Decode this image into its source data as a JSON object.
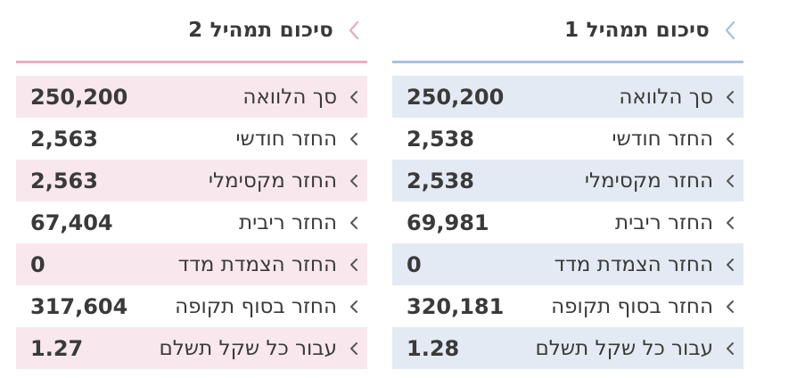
{
  "summaries": [
    {
      "title": "סיכום תמהיל 1",
      "rows": [
        {
          "label": "סך הלוואה",
          "value": "250,200"
        },
        {
          "label": "החזר חודשי",
          "value": "2,538"
        },
        {
          "label": "החזר מקסימלי",
          "value": "2,538"
        },
        {
          "label": "החזר ריבית",
          "value": "69,981"
        },
        {
          "label": "החזר הצמדת מדד",
          "value": "0"
        },
        {
          "label": "החזר בסוף תקופה",
          "value": "320,181"
        },
        {
          "label": "עבור כל שקל תשלם",
          "value": "1.28"
        }
      ]
    },
    {
      "title": "סיכום תמהיל 2",
      "rows": [
        {
          "label": "סך הלוואה",
          "value": "250,200"
        },
        {
          "label": "החזר חודשי",
          "value": "2,563"
        },
        {
          "label": "החזר מקסימלי",
          "value": "2,563"
        },
        {
          "label": "החזר ריבית",
          "value": "67,404"
        },
        {
          "label": "החזר הצמדת מדד",
          "value": "0"
        },
        {
          "label": "החזר בסוף תקופה",
          "value": "317,604"
        },
        {
          "label": "עבור כל שקל תשלם",
          "value": "1.27"
        }
      ]
    }
  ],
  "colors": {
    "panel1_accent": "#a9c2dc",
    "panel1_row_bg": "#e3eaf3",
    "panel2_accent": "#e8aec1",
    "panel2_row_bg": "#f8e8ed",
    "text": "#3a3a3a",
    "chevron": "#555555"
  },
  "icons": {
    "header": "chevron-left-icon",
    "row": "chevron-left-icon"
  }
}
